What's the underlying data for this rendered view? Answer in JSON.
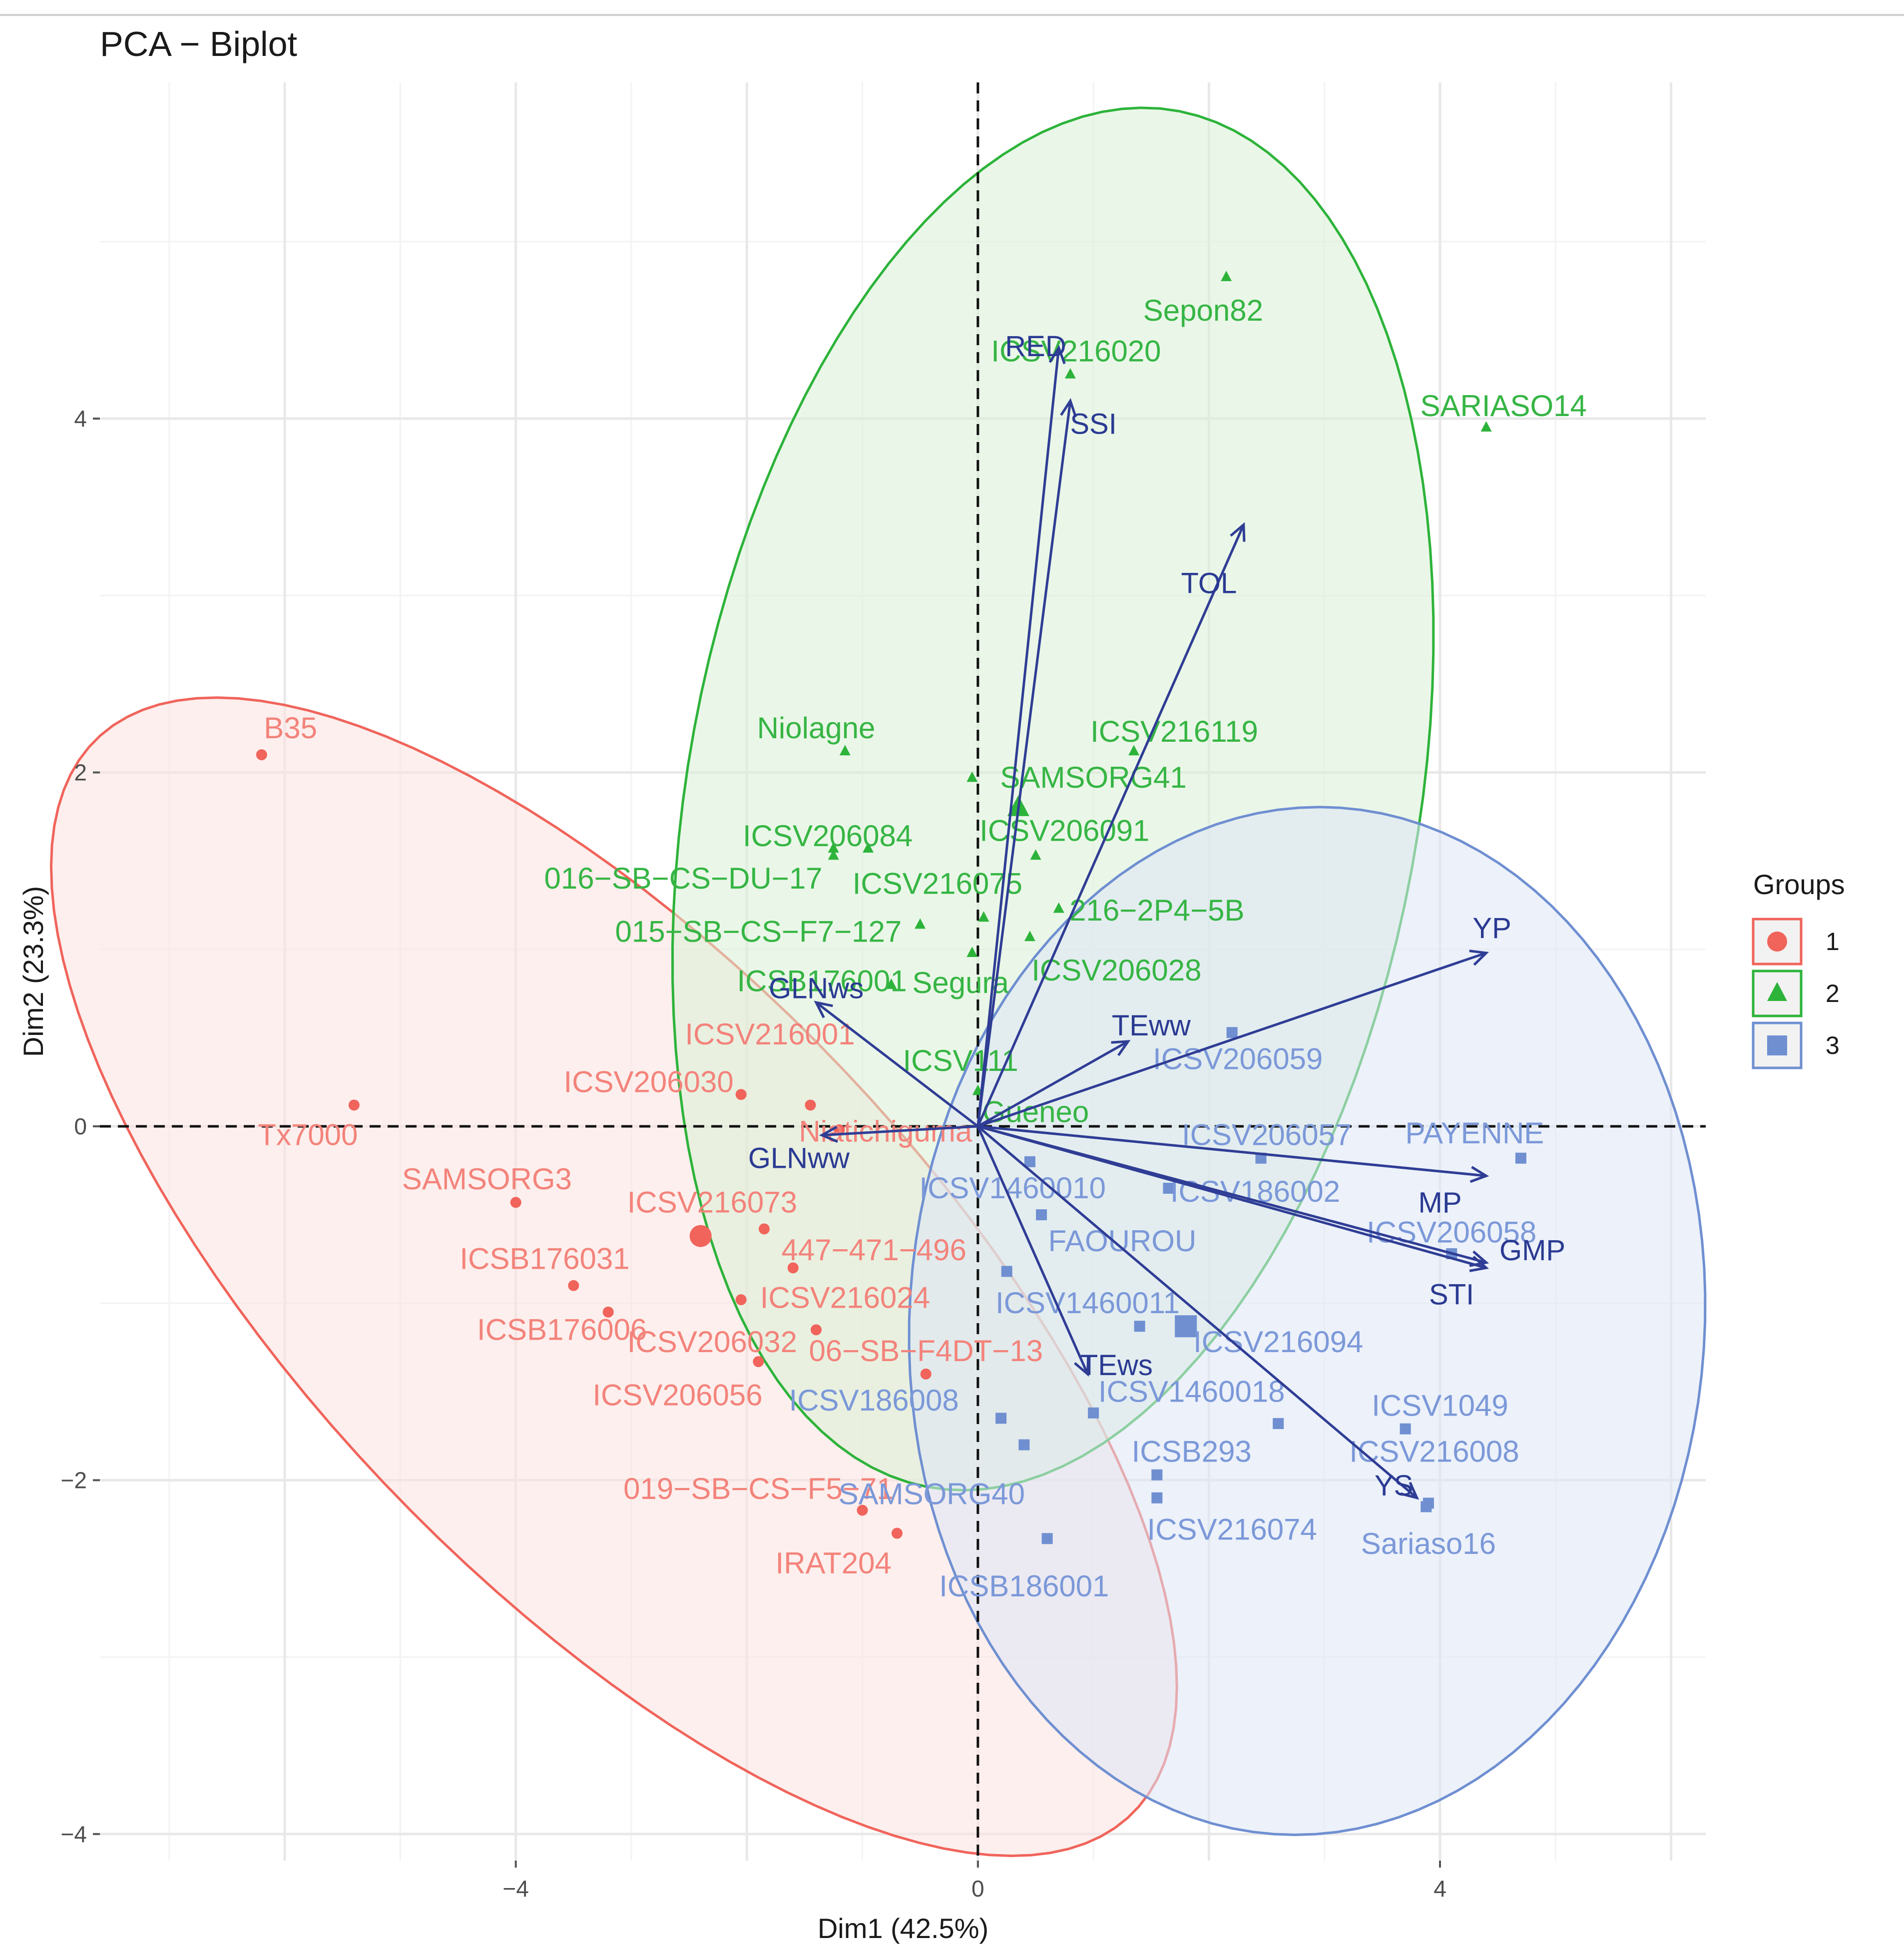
{
  "chart_data": {
    "type": "scatter",
    "title": "PCA − Biplot",
    "xlabel": "Dim1 (42.5%)",
    "ylabel": "Dim2 (23.3%)",
    "xlim": [
      -7.6,
      6.3
    ],
    "ylim": [
      -4.15,
      5.9
    ],
    "x_ticks": [
      -4,
      0,
      4
    ],
    "y_ticks": [
      -4,
      -2,
      0,
      2,
      4
    ],
    "tick_labels": {
      "x": [
        "−4",
        "0",
        "4"
      ],
      "y": [
        "−4",
        "−2",
        "0",
        "2",
        "4"
      ]
    },
    "grid": true,
    "legend": {
      "title": "Groups",
      "position": "right",
      "entries": [
        {
          "label": "1",
          "group": "1"
        },
        {
          "label": "2",
          "group": "2"
        },
        {
          "label": "3",
          "group": "3"
        }
      ]
    },
    "groups": {
      "1": {
        "color": "#f0645b",
        "label_color": "#f3837b",
        "fill": "#fbe1de",
        "shape": "circle"
      },
      "2": {
        "color": "#2db33a",
        "label_color": "#36b544",
        "fill": "#d8f0d6",
        "shape": "triangle"
      },
      "3": {
        "color": "#6f8fd1",
        "label_color": "#7b98d8",
        "fill": "#dde5f6",
        "shape": "square"
      }
    },
    "ellipses": [
      {
        "group": "1",
        "cx": -3.15,
        "cy": -0.85,
        "a": 5.5,
        "b": 2.05,
        "angle_deg": -30
      },
      {
        "group": "2",
        "cx": 0.65,
        "cy": 1.85,
        "a": 4.1,
        "b": 3.05,
        "angle_deg": 63
      },
      {
        "group": "3",
        "cx": 2.85,
        "cy": -1.1,
        "a": 3.45,
        "b": 2.9,
        "angle_deg": 5
      }
    ],
    "centroids": [
      {
        "group": "1",
        "x": -2.4,
        "y": -0.62
      },
      {
        "group": "2",
        "x": 0.35,
        "y": 1.8
      },
      {
        "group": "3",
        "x": 1.8,
        "y": -1.13
      }
    ],
    "individuals": [
      {
        "label": "B35",
        "group": "1",
        "x": -6.2,
        "y": 2.1,
        "lx": -5.95,
        "ly": 2.25
      },
      {
        "label": "Tx7000",
        "group": "1",
        "x": -5.4,
        "y": 0.12,
        "lx": -5.8,
        "ly": -0.05
      },
      {
        "label": "SAMSORG3",
        "group": "1",
        "x": -4.0,
        "y": -0.43,
        "lx": -4.25,
        "ly": -0.3
      },
      {
        "label": "ICSB176031",
        "group": "1",
        "x": -3.5,
        "y": -0.9,
        "lx": -3.75,
        "ly": -0.75
      },
      {
        "label": "ICSB176006",
        "group": "1",
        "x": -3.2,
        "y": -1.05,
        "lx": -3.6,
        "ly": -1.15
      },
      {
        "label": "ICSV206030",
        "group": "1",
        "x": -2.05,
        "y": 0.18,
        "lx": -2.85,
        "ly": 0.25
      },
      {
        "label": "ICSV216001",
        "group": "1",
        "x": -1.45,
        "y": 0.12,
        "lx": -1.8,
        "ly": 0.52
      },
      {
        "label": "Niatichiguma",
        "group": "1",
        "x": -1.2,
        "y": -0.02,
        "lx": -0.8,
        "ly": -0.03
      },
      {
        "label": "ICSV216073",
        "group": "1",
        "x": -1.85,
        "y": -0.58,
        "lx": -2.3,
        "ly": -0.43
      },
      {
        "label": "447−471−496",
        "group": "1",
        "x": -1.6,
        "y": -0.8,
        "lx": -0.9,
        "ly": -0.7
      },
      {
        "label": "ICSV216024",
        "group": "1",
        "x": -2.05,
        "y": -0.98,
        "lx": -1.15,
        "ly": -0.97
      },
      {
        "label": "ICSV206032",
        "group": "1",
        "x": -1.4,
        "y": -1.15,
        "lx": -2.3,
        "ly": -1.22
      },
      {
        "label": "06−SB−F4DT−13",
        "group": "1",
        "x": -0.45,
        "y": -1.4,
        "lx": -0.45,
        "ly": -1.27
      },
      {
        "label": "ICSV206056",
        "group": "1",
        "x": -1.9,
        "y": -1.33,
        "lx": -2.6,
        "ly": -1.52
      },
      {
        "label": "019−SB−CS−F5−71",
        "group": "1",
        "x": -1.0,
        "y": -2.17,
        "lx": -1.9,
        "ly": -2.05
      },
      {
        "label": "IRAT204",
        "group": "1",
        "x": -0.7,
        "y": -2.3,
        "lx": -1.25,
        "ly": -2.47
      },
      {
        "label": "Sepon82",
        "group": "2",
        "x": 2.15,
        "y": 4.8,
        "lx": 1.95,
        "ly": 4.61
      },
      {
        "label": "ICSV216020",
        "group": "2",
        "x": 0.8,
        "y": 4.25,
        "lx": 0.85,
        "ly": 4.38
      },
      {
        "label": "SARIASO14",
        "group": "2",
        "x": 4.4,
        "y": 3.95,
        "lx": 4.55,
        "ly": 4.07
      },
      {
        "label": "Niolagne",
        "group": "2",
        "x": -1.15,
        "y": 2.12,
        "lx": -1.4,
        "ly": 2.25
      },
      {
        "label": "ICSV216119",
        "group": "2",
        "x": 1.35,
        "y": 2.12,
        "lx": 1.7,
        "ly": 2.23
      },
      {
        "label": "SAMSORG41",
        "group": "2",
        "x": -0.05,
        "y": 1.97,
        "lx": 1.0,
        "ly": 1.97
      },
      {
        "label": "ICSV206084",
        "group": "2",
        "x": -1.25,
        "y": 1.57,
        "lx": -1.3,
        "ly": 1.64
      },
      {
        "label": "ICSV206091",
        "group": "2",
        "x": -0.95,
        "y": 1.57,
        "lx": 0.75,
        "ly": 1.67
      },
      {
        "label": "016−SB−CS−DU−17",
        "group": "2",
        "x": -1.25,
        "y": 1.53,
        "lx": -2.55,
        "ly": 1.4
      },
      {
        "label": "ICSV216075",
        "group": "2",
        "x": 0.5,
        "y": 1.53,
        "lx": -0.35,
        "ly": 1.37
      },
      {
        "label": "216−2P4−5B",
        "group": "2",
        "x": 0.7,
        "y": 1.23,
        "lx": 1.55,
        "ly": 1.22
      },
      {
        "label": "015−SB−CS−F7−127",
        "group": "2",
        "x": -0.5,
        "y": 1.14,
        "lx": -1.9,
        "ly": 1.1
      },
      {
        "label": "ICSV206028",
        "group": "2",
        "x": 0.45,
        "y": 1.07,
        "lx": 1.2,
        "ly": 0.88
      },
      {
        "label": "ICSB176001",
        "group": "2",
        "x": -0.05,
        "y": 0.98,
        "lx": -1.35,
        "ly": 0.82
      },
      {
        "label": "Segura",
        "group": "2",
        "x": -0.75,
        "y": 0.8,
        "lx": -0.15,
        "ly": 0.81
      },
      {
        "label": "ICSV111",
        "group": "2",
        "x": 0.05,
        "y": 1.18,
        "lx": -0.15,
        "ly": 0.37
      },
      {
        "label": "Gueneo",
        "group": "2",
        "x": 0.0,
        "y": 0.2,
        "lx": 0.5,
        "ly": 0.08
      },
      {
        "label": "ICSV206059",
        "group": "3",
        "x": 2.2,
        "y": 0.53,
        "lx": 2.25,
        "ly": 0.38
      },
      {
        "label": "ICSV206057",
        "group": "3",
        "x": 2.45,
        "y": -0.18,
        "lx": 2.5,
        "ly": -0.05
      },
      {
        "label": "PAYENNE",
        "group": "3",
        "x": 4.7,
        "y": -0.18,
        "lx": 4.3,
        "ly": -0.04
      },
      {
        "label": "ICSV1460010",
        "group": "3",
        "x": 0.45,
        "y": -0.2,
        "lx": 0.3,
        "ly": -0.35
      },
      {
        "label": "ICSV186002",
        "group": "3",
        "x": 1.65,
        "y": -0.35,
        "lx": 2.4,
        "ly": -0.37
      },
      {
        "label": "FAOUROU",
        "group": "3",
        "x": 0.55,
        "y": -0.5,
        "lx": 1.25,
        "ly": -0.65
      },
      {
        "label": "ICSV206058",
        "group": "3",
        "x": 4.1,
        "y": -0.72,
        "lx": 4.1,
        "ly": -0.6
      },
      {
        "label": "ICSV1460011",
        "group": "3",
        "x": 0.25,
        "y": -0.82,
        "lx": 0.95,
        "ly": -1.0
      },
      {
        "label": "ICSV216094",
        "group": "3",
        "x": 1.4,
        "y": -1.13,
        "lx": 2.6,
        "ly": -1.22
      },
      {
        "label": "ICSV186008",
        "group": "3",
        "x": 0.2,
        "y": -1.65,
        "lx": -0.9,
        "ly": -1.55
      },
      {
        "label": "ICSV1460018",
        "group": "3",
        "x": 1.0,
        "y": -1.62,
        "lx": 1.85,
        "ly": -1.5
      },
      {
        "label": "ICSV1049",
        "group": "3",
        "x": 2.6,
        "y": -1.68,
        "lx": 4.0,
        "ly": -1.58
      },
      {
        "label": "ICSV216008",
        "group": "3",
        "x": 3.7,
        "y": -1.71,
        "lx": 3.95,
        "ly": -1.84
      },
      {
        "label": "ICSB293",
        "group": "3",
        "x": 1.55,
        "y": -1.97,
        "lx": 1.85,
        "ly": -1.84
      },
      {
        "label": "SAMSORG40",
        "group": "3",
        "x": 0.4,
        "y": -1.8,
        "lx": -0.4,
        "ly": -2.08
      },
      {
        "label": "ICSV216074",
        "group": "3",
        "x": 1.55,
        "y": -2.1,
        "lx": 2.2,
        "ly": -2.28
      },
      {
        "label": "YS",
        "group": "3",
        "x": 3.9,
        "y": -2.13,
        "lx": 0,
        "ly": 0,
        "hide_label": true
      },
      {
        "label": "Sariaso16",
        "group": "3",
        "x": 3.88,
        "y": -2.15,
        "lx": 3.9,
        "ly": -2.36
      },
      {
        "label": "ICSB186001",
        "group": "3",
        "x": 0.6,
        "y": -2.33,
        "lx": 0.4,
        "ly": -2.6
      }
    ],
    "variables": [
      {
        "label": "RED",
        "x": 0.7,
        "y": 4.4,
        "lx": 0.5,
        "ly": 4.41
      },
      {
        "label": "SSI",
        "x": 0.8,
        "y": 4.1,
        "lx": 1.0,
        "ly": 3.97
      },
      {
        "label": "TOL",
        "x": 2.3,
        "y": 3.4,
        "lx": 2.0,
        "ly": 3.07
      },
      {
        "label": "YP",
        "x": 4.4,
        "y": 0.98,
        "lx": 4.45,
        "ly": 1.12
      },
      {
        "label": "TEww",
        "x": 1.3,
        "y": 0.48,
        "lx": 1.5,
        "ly": 0.57
      },
      {
        "label": "GLNws",
        "x": -1.4,
        "y": 0.7,
        "lx": -1.4,
        "ly": 0.78
      },
      {
        "label": "GLNww",
        "x": -1.35,
        "y": -0.05,
        "lx": -1.55,
        "ly": -0.18
      },
      {
        "label": "MP",
        "x": 4.4,
        "y": -0.28,
        "lx": 4.0,
        "ly": -0.43
      },
      {
        "label": "GMP",
        "x": 4.4,
        "y": -0.8,
        "lx": 4.8,
        "ly": -0.7
      },
      {
        "label": "STI",
        "x": 4.4,
        "y": -0.77,
        "lx": 4.1,
        "ly": -0.95
      },
      {
        "label": "TEws",
        "x": 0.95,
        "y": -1.4,
        "lx": 1.2,
        "ly": -1.35
      },
      {
        "label": "YS",
        "x": 3.8,
        "y": -2.1,
        "lx": 3.6,
        "ly": -2.03
      }
    ]
  }
}
